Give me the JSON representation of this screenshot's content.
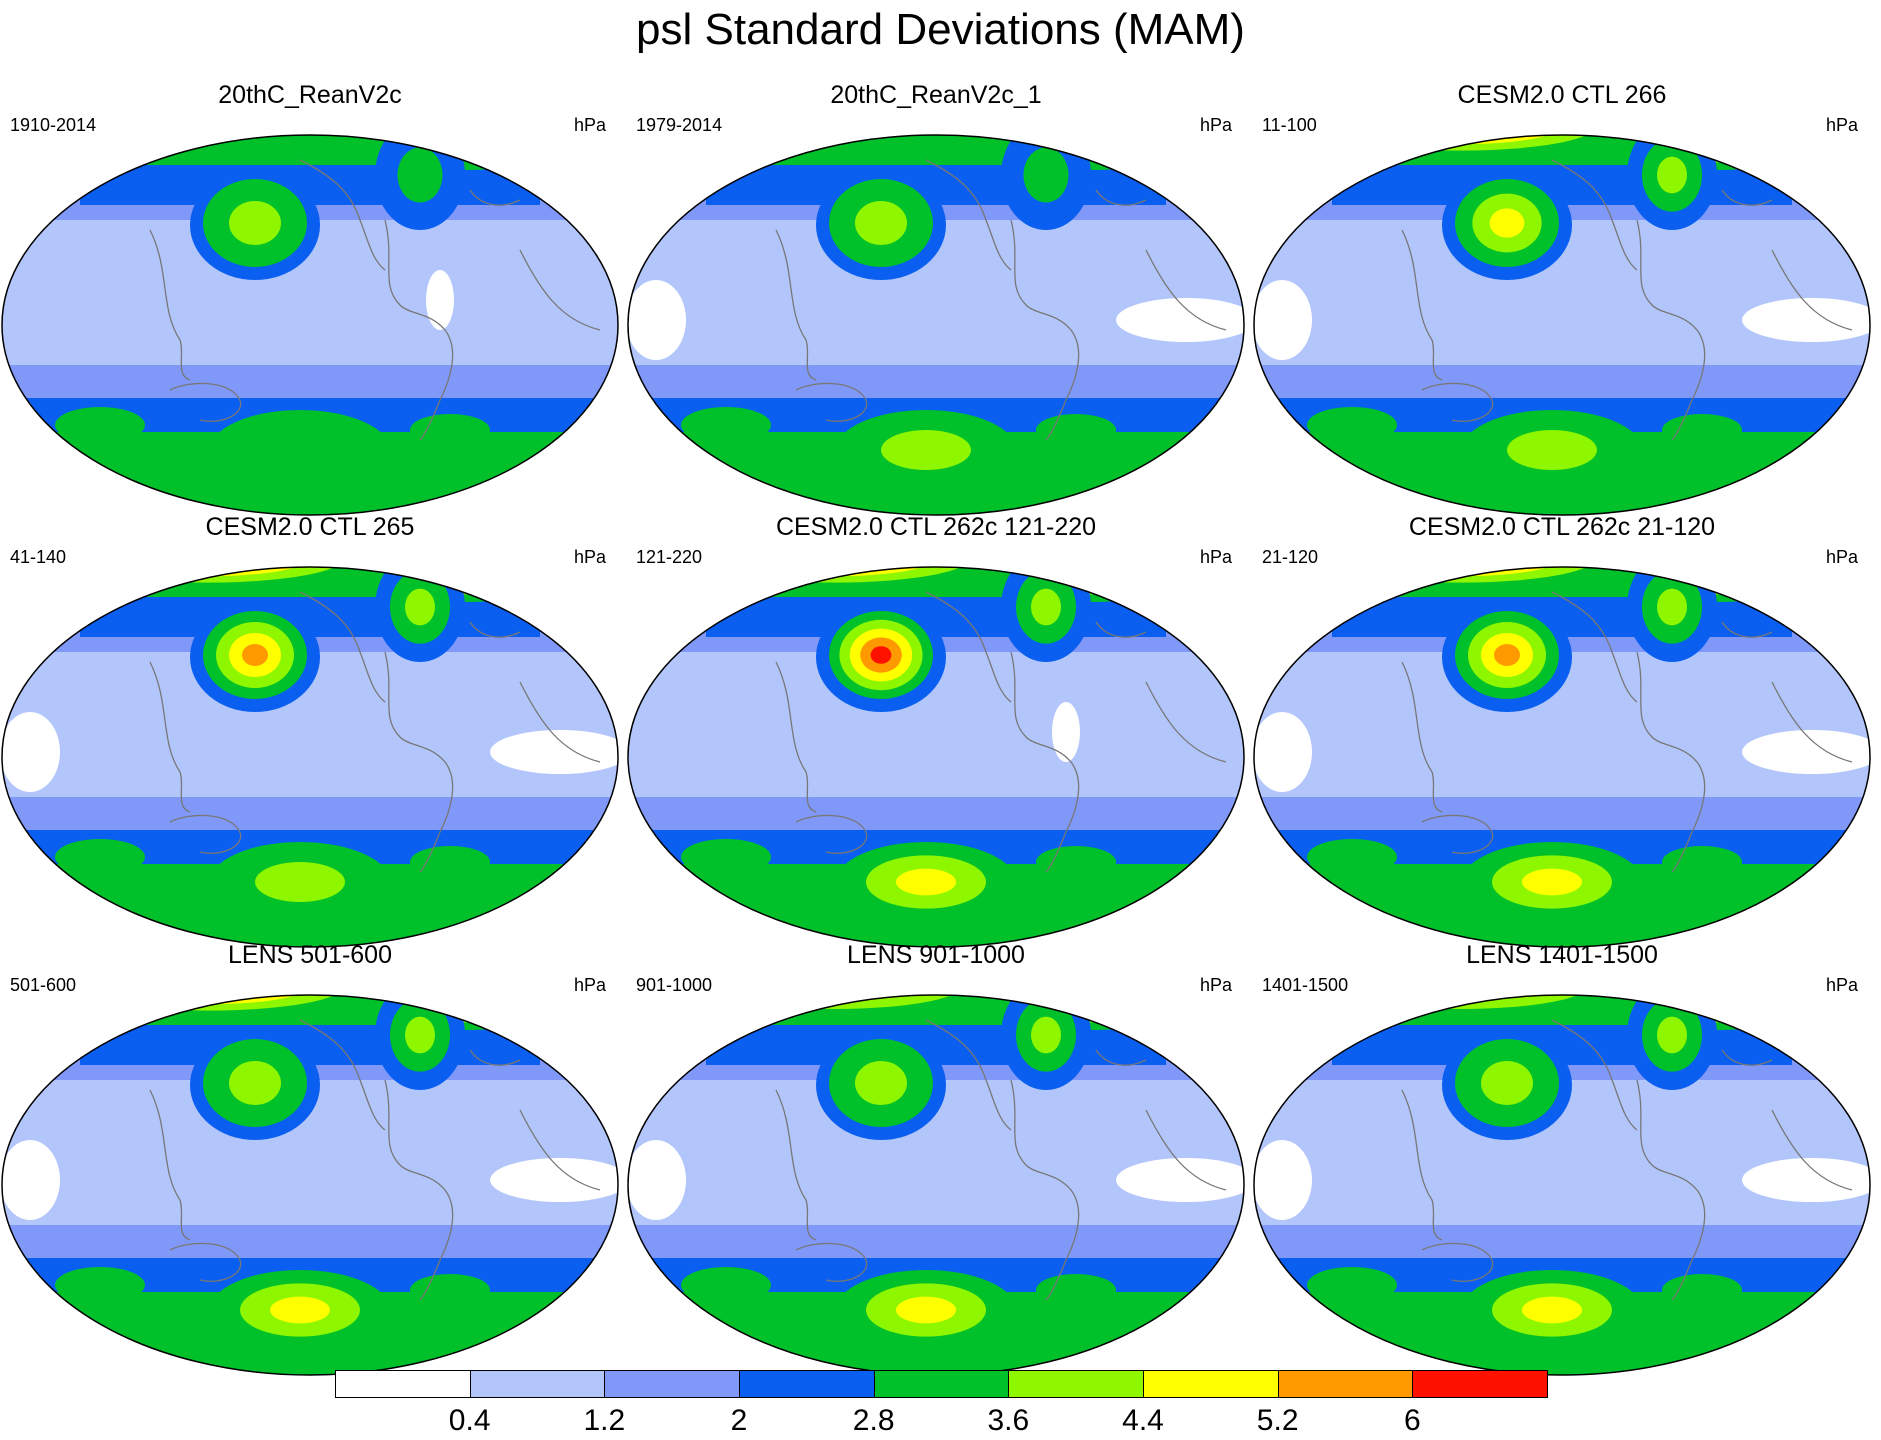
{
  "title": "psl Standard Deviations (MAM)",
  "colorbar": {
    "colors": [
      "#ffffff",
      "#b3c6fb",
      "#8099f9",
      "#0a5ff0",
      "#00c129",
      "#8ef700",
      "#ffff00",
      "#ff9900",
      "#ff1100"
    ],
    "labels": [
      "0.4",
      "1.2",
      "2",
      "2.8",
      "3.6",
      "4.4",
      "5.2",
      "6"
    ]
  },
  "panels": [
    {
      "title": "20thC_ReanV2c",
      "period": "1910-2014",
      "units": "hPa",
      "levels": {
        "arctic": 4,
        "eu": 4,
        "al": 5,
        "na": 4,
        "so": 4,
        "ant": 4,
        "tropics": 1
      }
    },
    {
      "title": "20thC_ReanV2c_1",
      "period": "1979-2014",
      "units": "hPa",
      "levels": {
        "arctic": 6,
        "eu": 5,
        "al": 5,
        "na": 4,
        "so": 4,
        "ant": 5,
        "tropics": 0
      }
    },
    {
      "title": "CESM2.0 CTL 266",
      "period": "11-100",
      "units": "hPa",
      "levels": {
        "arctic": 7,
        "eu": 8,
        "al": 6,
        "na": 5,
        "so": 4,
        "ant": 5,
        "tropics": 0
      }
    },
    {
      "title": "CESM2.0 CTL 265",
      "period": "41-140",
      "units": "hPa",
      "levels": {
        "arctic": 7,
        "eu": 8,
        "al": 7,
        "na": 5,
        "so": 4,
        "ant": 5,
        "tropics": 0
      }
    },
    {
      "title": "CESM2.0 CTL 262c 121-220",
      "period": "121-220",
      "units": "hPa",
      "levels": {
        "arctic": 7,
        "eu": 8,
        "al": 8,
        "na": 5,
        "so": 4,
        "ant": 6,
        "tropics": 1
      }
    },
    {
      "title": "CESM2.0 CTL 262c 21-120",
      "period": "21-120",
      "units": "hPa",
      "levels": {
        "arctic": 7,
        "eu": 8,
        "al": 7,
        "na": 5,
        "so": 4,
        "ant": 6,
        "tropics": 0
      }
    },
    {
      "title": "LENS 501-600",
      "period": "501-600",
      "units": "hPa",
      "levels": {
        "arctic": 7,
        "eu": 8,
        "al": 5,
        "na": 5,
        "so": 4,
        "ant": 6,
        "tropics": 0
      }
    },
    {
      "title": "LENS 901-1000",
      "period": "901-1000",
      "units": "hPa",
      "levels": {
        "arctic": 7,
        "eu": 7,
        "al": 5,
        "na": 5,
        "so": 4,
        "ant": 6,
        "tropics": 0
      }
    },
    {
      "title": "LENS 1401-1500",
      "period": "1401-1500",
      "units": "hPa",
      "levels": {
        "arctic": 7,
        "eu": 7,
        "al": 5,
        "na": 5,
        "so": 4,
        "ant": 6,
        "tropics": 0
      }
    }
  ]
}
